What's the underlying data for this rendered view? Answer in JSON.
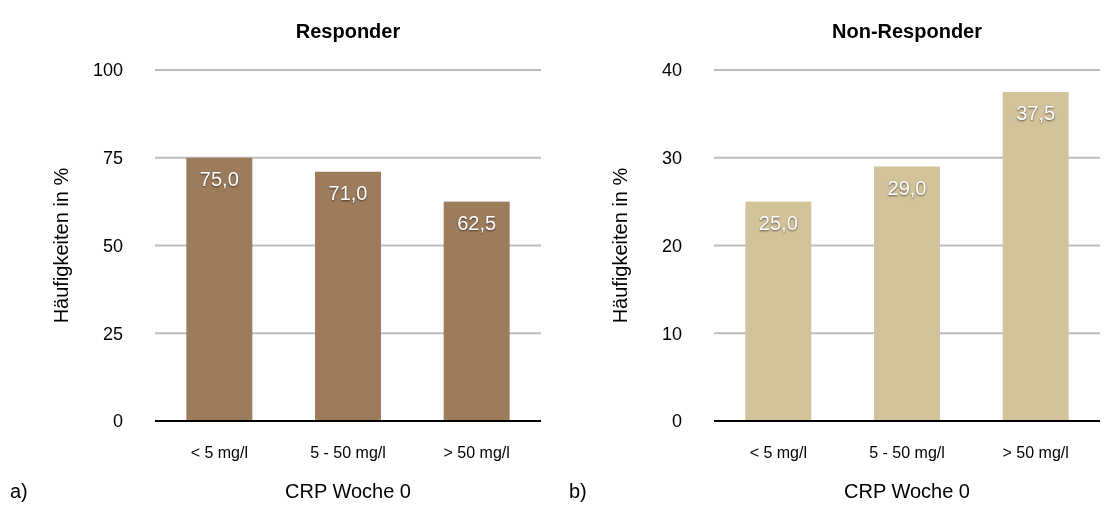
{
  "chart_data": [
    {
      "type": "bar",
      "title": "Responder",
      "xlabel": "CRP Woche 0",
      "ylabel": "Häufigkeiten in %",
      "categories": [
        "< 5 mg/l",
        "5 - 50 mg/l",
        "> 50 mg/l"
      ],
      "values": [
        75,
        71,
        62.5
      ],
      "value_labels": [
        "75,0",
        "71,0",
        "62,5"
      ],
      "color": "#9d7c5c",
      "ylim": [
        0,
        100
      ],
      "yticks": [
        0,
        25,
        50,
        75,
        100
      ],
      "grid": "y",
      "annotations": [
        "a)"
      ]
    },
    {
      "type": "bar",
      "title": "Non-Responder",
      "xlabel": "CRP Woche 0",
      "ylabel": "Häufigkeiten in %",
      "categories": [
        "< 5 mg/l",
        "5 - 50 mg/l",
        "> 50 mg/l"
      ],
      "values": [
        25,
        29,
        37.5
      ],
      "value_labels": [
        "25,0",
        "29,0",
        "37,5"
      ],
      "color": "#d3c39b",
      "ylim": [
        0,
        40
      ],
      "yticks": [
        0,
        10,
        20,
        30,
        40
      ],
      "grid": "y",
      "annotations": [
        "b)"
      ]
    }
  ]
}
